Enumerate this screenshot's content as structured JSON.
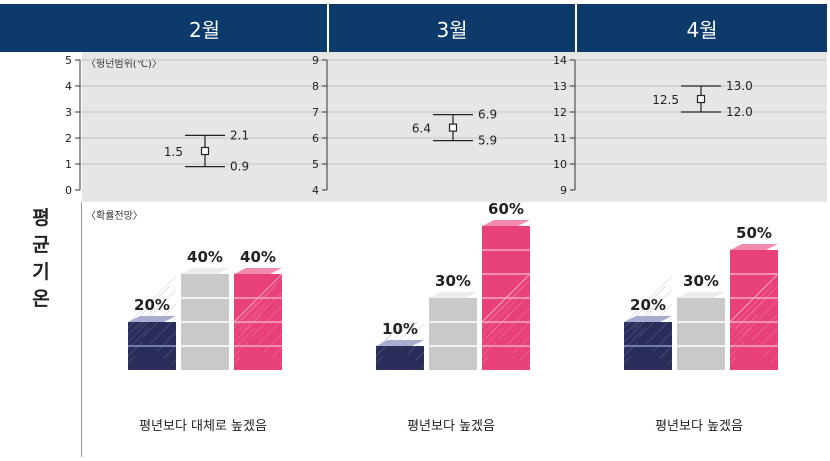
{
  "header": {
    "months": [
      "2월",
      "3월",
      "4월"
    ]
  },
  "range_label": "〈평년범위(℃)〉",
  "prob_label": "〈확률전망〉",
  "side_title": [
    "평",
    "균",
    "기",
    "온"
  ],
  "colors": {
    "header": "#0b3a6b",
    "below": "#a7acd0",
    "normal": "#d9d9d9",
    "above": "#e8417a"
  },
  "chart_data": [
    {
      "type": "errorbar",
      "month": "2월",
      "ylim": [
        0,
        5
      ],
      "yticks": [
        0,
        1,
        2,
        3,
        4,
        5
      ],
      "mean": 1.5,
      "low": 0.9,
      "high": 2.1,
      "labels": {
        "mean": "1.5",
        "low": "0.9",
        "high": "2.1"
      }
    },
    {
      "type": "errorbar",
      "month": "3월",
      "ylim": [
        4,
        9
      ],
      "yticks": [
        4,
        5,
        6,
        7,
        8,
        9
      ],
      "mean": 6.4,
      "low": 5.9,
      "high": 6.9,
      "labels": {
        "mean": "6.4",
        "low": "5.9",
        "high": "6.9"
      }
    },
    {
      "type": "errorbar",
      "month": "4월",
      "ylim": [
        9,
        14
      ],
      "yticks": [
        9,
        10,
        11,
        12,
        13,
        14
      ],
      "mean": 12.5,
      "low": 12.0,
      "high": 13.0,
      "labels": {
        "mean": "12.5",
        "low": "12.0",
        "high": "13.0"
      }
    },
    {
      "type": "bar",
      "month": "2월",
      "values": [
        20,
        40,
        40
      ],
      "labels": [
        "20%",
        "40%",
        "40%"
      ],
      "caption": "평년보다 대체로 높겠음"
    },
    {
      "type": "bar",
      "month": "3월",
      "values": [
        10,
        30,
        60
      ],
      "labels": [
        "10%",
        "30%",
        "60%"
      ],
      "caption": "평년보다 높겠음"
    },
    {
      "type": "bar",
      "month": "4월",
      "values": [
        20,
        30,
        50
      ],
      "labels": [
        "20%",
        "30%",
        "50%"
      ],
      "caption": "평년보다 높겠음"
    }
  ]
}
